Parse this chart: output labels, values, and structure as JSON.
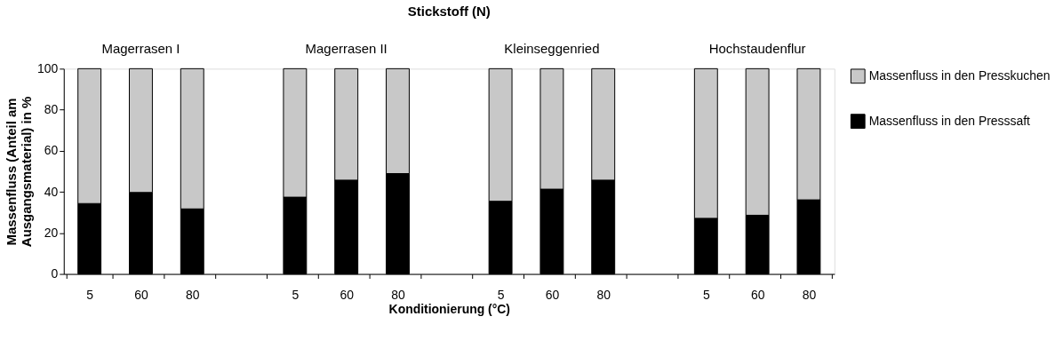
{
  "chart_data": {
    "type": "bar",
    "stacked": true,
    "title": "Stickstoff (N)",
    "xlabel": "Konditionierung (°C)",
    "ylabel": "Massenfluss (Anteil am Ausgangsmaterial) in %",
    "categories": [
      "5",
      "60",
      "80",
      null,
      "5",
      "60",
      "80",
      null,
      "5",
      "60",
      "80",
      null,
      "5",
      "60",
      "80"
    ],
    "series": [
      {
        "name": "Massenfluss in den Presssaft",
        "color": "#000000",
        "values": [
          34.3,
          39.7,
          31.7,
          null,
          37.4,
          45.7,
          48.9,
          null,
          35.4,
          41.3,
          45.7,
          null,
          27.1,
          28.6,
          36.1
        ]
      },
      {
        "name": "Massenfluss in den Presskuchen",
        "color": "#c8c8c8",
        "values": [
          65.7,
          60.3,
          68.3,
          null,
          62.6,
          54.3,
          51.1,
          null,
          64.6,
          58.7,
          54.3,
          null,
          72.9,
          71.4,
          63.9
        ]
      }
    ],
    "annotations": [
      "Magerrasen I",
      "Magerrasen II",
      "Kleinseggenried",
      "Hochstaudenflur"
    ],
    "ylim": [
      0,
      100
    ],
    "yticks": [
      0,
      20,
      40,
      60,
      80,
      100
    ],
    "grid": false,
    "legend": "right"
  }
}
